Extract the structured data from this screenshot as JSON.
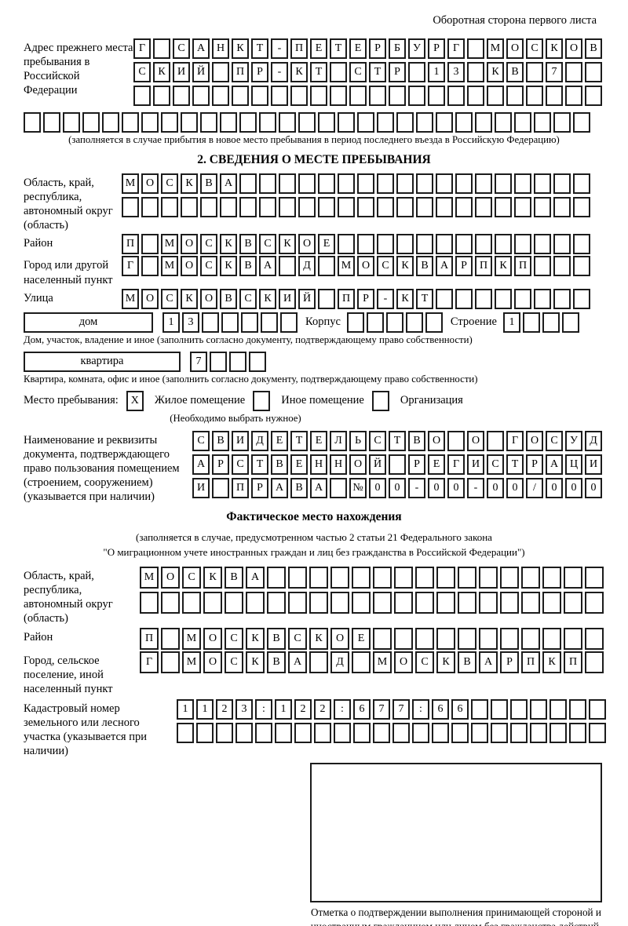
{
  "page": {
    "header_note": "Оборотная сторона первого листа"
  },
  "prev_address": {
    "label": "Адрес прежнего места пребывания в Российской Федерации",
    "rows": [
      "Г САНКТ-ПЕТЕРБУРГ МОСКОВ",
      "СКИЙ ПР-КТ СТР 13 КВ 7  ",
      "                        "
    ],
    "overflow_row": "                             ",
    "caption": "(заполняется в случае прибытия в новое место пребывания в период последнего въезда в Российскую Федерацию)"
  },
  "section2": {
    "title": "2. СВЕДЕНИЯ О МЕСТЕ ПРЕБЫВАНИЯ",
    "region": {
      "label": "Область, край, республика, автономный округ (область)",
      "rows": [
        "МОСКВА                  ",
        "                        "
      ]
    },
    "district": {
      "label": "Район",
      "row": "П МОСКВСКОЕ             "
    },
    "city": {
      "label": "Город или другой населенный пункт",
      "row": "Г МОСКВА Д МОСКВАРПКП   "
    },
    "street": {
      "label": "Улица",
      "row": "МОСКОВСКИЙ ПР-КТ        "
    },
    "house": {
      "box_label": "дом",
      "cells": "13     ",
      "korpus_label": "Корпус",
      "korpus_cells": "     ",
      "stroenie_label": "Строение",
      "stroenie_cells": "1   ",
      "caption": "Дом, участок, владение и иное (заполнить согласно документу, подтверждающему право собственности)"
    },
    "apartment": {
      "box_label": "квартира",
      "cells": "7   ",
      "caption": "Квартира, комната, офис и иное (заполнить согласно документу, подтверждающему право собственности)"
    },
    "stay_type": {
      "label": "Место пребывания:",
      "checked_mark": "X",
      "options": [
        {
          "label": "Жилое помещение",
          "checked": true
        },
        {
          "label": "Иное помещение",
          "checked": false
        },
        {
          "label": "Организация",
          "checked": false
        }
      ],
      "note": "(Необходимо выбрать нужное)"
    },
    "document": {
      "label": "Наименование и реквизиты документа, подтверждающего право пользования помещением (строением, сооружением) (указывается при наличии)",
      "rows": [
        "СВИДЕТЕЛЬСТВО О ГОСУД",
        "АРСТВЕННОЙ РЕГИСТРАЦИ",
        "И ПРАВА №00-00-00/000"
      ]
    }
  },
  "actual_location": {
    "title": "Фактическое место нахождения",
    "caption_line1": "(заполняется в случае, предусмотренном частью 2 статьи 21 Федерального закона",
    "caption_line2": "\"О миграционном учете иностранных граждан и лиц без гражданства в Российской Федерации\")",
    "region": {
      "label": "Область, край, республика, автономный округ (область)",
      "rows": [
        "МОСКВА                ",
        "                      "
      ]
    },
    "district": {
      "label": "Район",
      "row": "П МОСКВСКОЕ           "
    },
    "city": {
      "label": "Город, сельское поселение, иной населенный пункт",
      "row": "Г МОСКВА Д МОСКВАРПКП "
    },
    "cadastral": {
      "label": "Кадастровый номер земельного или лесного участка (указывается при наличии)",
      "rows": [
        "1123:122:677:66       ",
        "                      "
      ]
    },
    "stamp_caption": "Отметка о подтверждении выполнения принимающей стороной и иностранным гражданином или лицом без гражданства действий, необходимых для его постановки на учет по месту пребывания"
  }
}
